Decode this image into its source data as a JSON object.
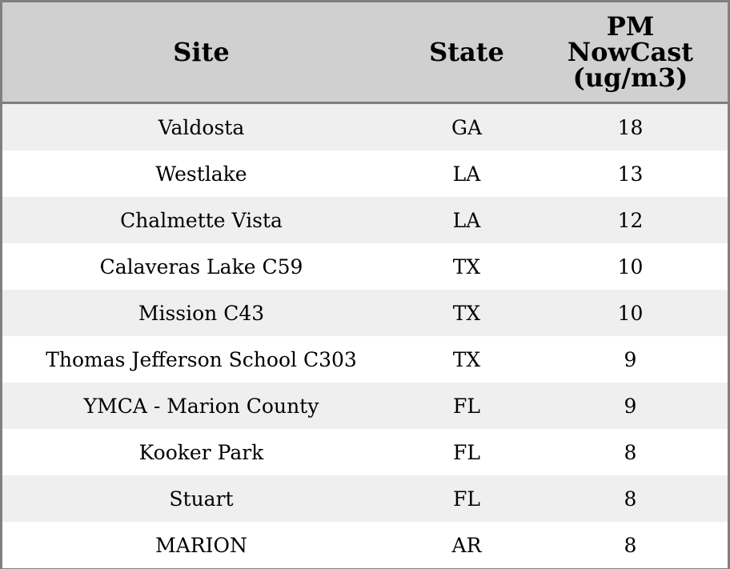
{
  "table": {
    "header": [
      "Site",
      "State",
      "PM NowCast (ug/m3)"
    ],
    "rows": [
      [
        "Valdosta",
        "GA",
        18
      ],
      [
        "Westlake",
        "LA",
        13
      ],
      [
        "Chalmette Vista",
        "LA",
        12
      ],
      [
        "Calaveras Lake C59",
        "TX",
        10
      ],
      [
        "Mission C43",
        "TX",
        10
      ],
      [
        "Thomas Jefferson School C303",
        "TX",
        9
      ],
      [
        "YMCA - Marion County",
        "FL",
        9
      ],
      [
        "Kooker Park",
        "FL",
        8
      ],
      [
        "Stuart",
        "FL",
        8
      ],
      [
        "MARION",
        "AR",
        8
      ]
    ]
  }
}
